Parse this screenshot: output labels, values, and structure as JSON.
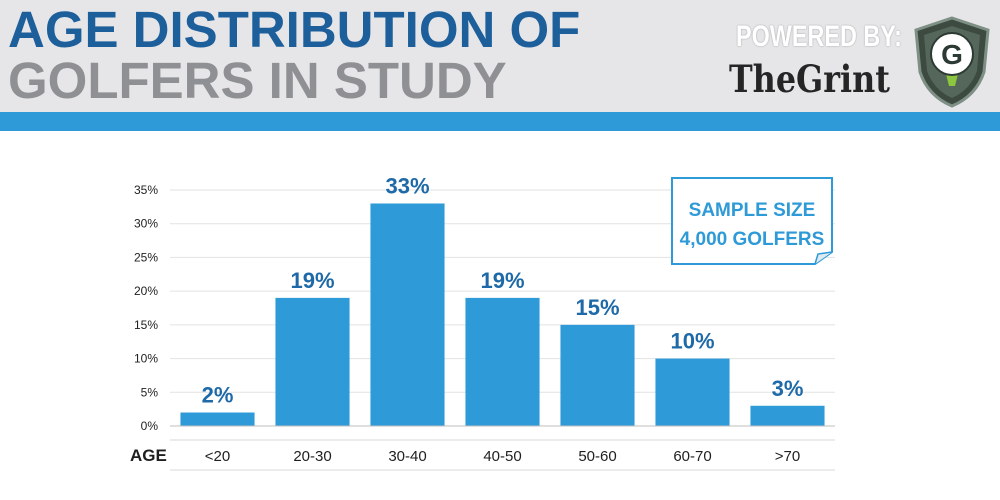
{
  "header": {
    "title_line1": "AGE DISTRIBUTION OF",
    "title_line2": "GOLFERS IN STUDY",
    "powered_by": "POWERED BY:",
    "brand": "TheGrint",
    "logo_letter": "G"
  },
  "colors": {
    "bar": "#2e9ad7",
    "data_label": "#1e6aa8",
    "title_primary": "#1d5f9b",
    "title_secondary": "#8f9093",
    "header_bg": "#e6e6e8",
    "band": "#2e9ad7"
  },
  "chart_data": {
    "type": "bar",
    "title": "AGE DISTRIBUTION OF GOLFERS IN STUDY",
    "xlabel": "AGE",
    "ylabel": "",
    "categories": [
      "<20",
      "20-30",
      "30-40",
      "40-50",
      "50-60",
      "60-70",
      ">70"
    ],
    "values": [
      2,
      19,
      33,
      19,
      15,
      10,
      3
    ],
    "data_labels": [
      "2%",
      "19%",
      "33%",
      "19%",
      "15%",
      "10%",
      "3%"
    ],
    "ylim": [
      0,
      35
    ],
    "yticks": [
      0,
      5,
      10,
      15,
      20,
      25,
      30,
      35
    ],
    "ytick_labels": [
      "0%",
      "5%",
      "10%",
      "15%",
      "20%",
      "25%",
      "30%",
      "35%"
    ],
    "grid": true,
    "annotation": {
      "line1": "SAMPLE SIZE",
      "line2": "4,000 GOLFERS",
      "placement": "top-right"
    }
  }
}
